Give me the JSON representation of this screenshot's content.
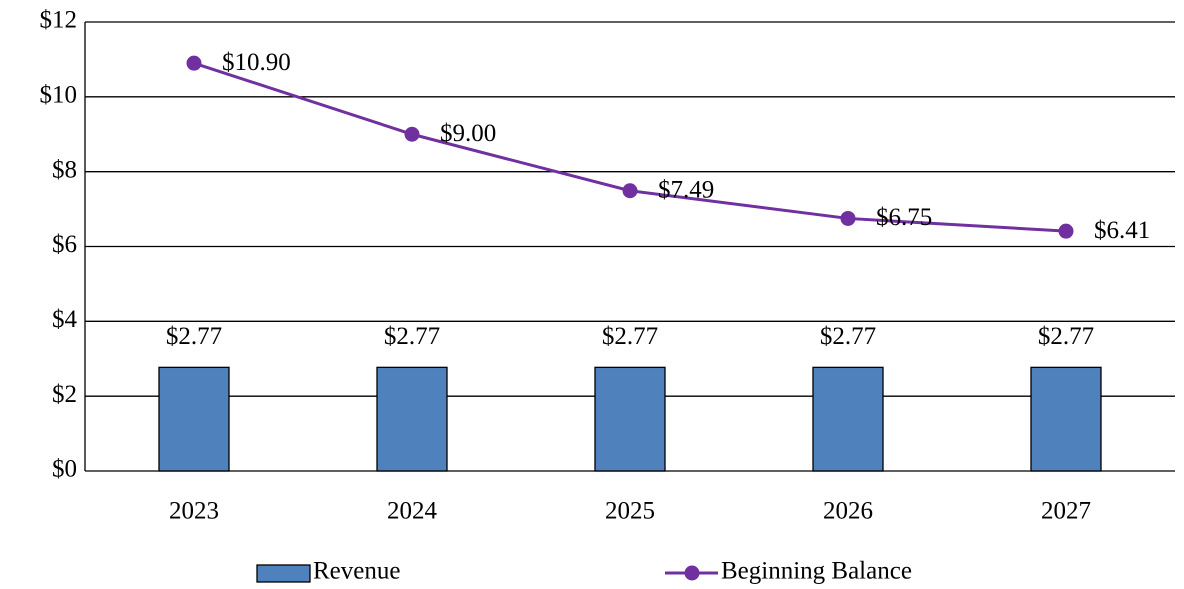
{
  "chart_data": {
    "type": "combo",
    "categories": [
      "2023",
      "2024",
      "2025",
      "2026",
      "2027"
    ],
    "series": [
      {
        "name": "Revenue",
        "type": "bar",
        "color": "#4f81bd",
        "values": [
          2.77,
          2.77,
          2.77,
          2.77,
          2.77
        ],
        "value_labels": [
          "$2.77",
          "$2.77",
          "$2.77",
          "$2.77",
          "$2.77"
        ]
      },
      {
        "name": "Beginning Balance",
        "type": "line",
        "color": "#7030a0",
        "values": [
          10.9,
          9.0,
          7.49,
          6.75,
          6.41
        ],
        "value_labels": [
          "$10.90",
          "$9.00",
          "$7.49",
          "$6.75",
          "$6.41"
        ]
      }
    ],
    "ylim": [
      0,
      12
    ],
    "yticks": [
      {
        "value": 0,
        "label": "$0"
      },
      {
        "value": 2,
        "label": "$2"
      },
      {
        "value": 4,
        "label": "$4"
      },
      {
        "value": 6,
        "label": "$6"
      },
      {
        "value": 8,
        "label": "$8"
      },
      {
        "value": 10,
        "label": "$10"
      },
      {
        "value": 12,
        "label": "$12"
      }
    ],
    "grid": true,
    "legend": "bottom"
  }
}
